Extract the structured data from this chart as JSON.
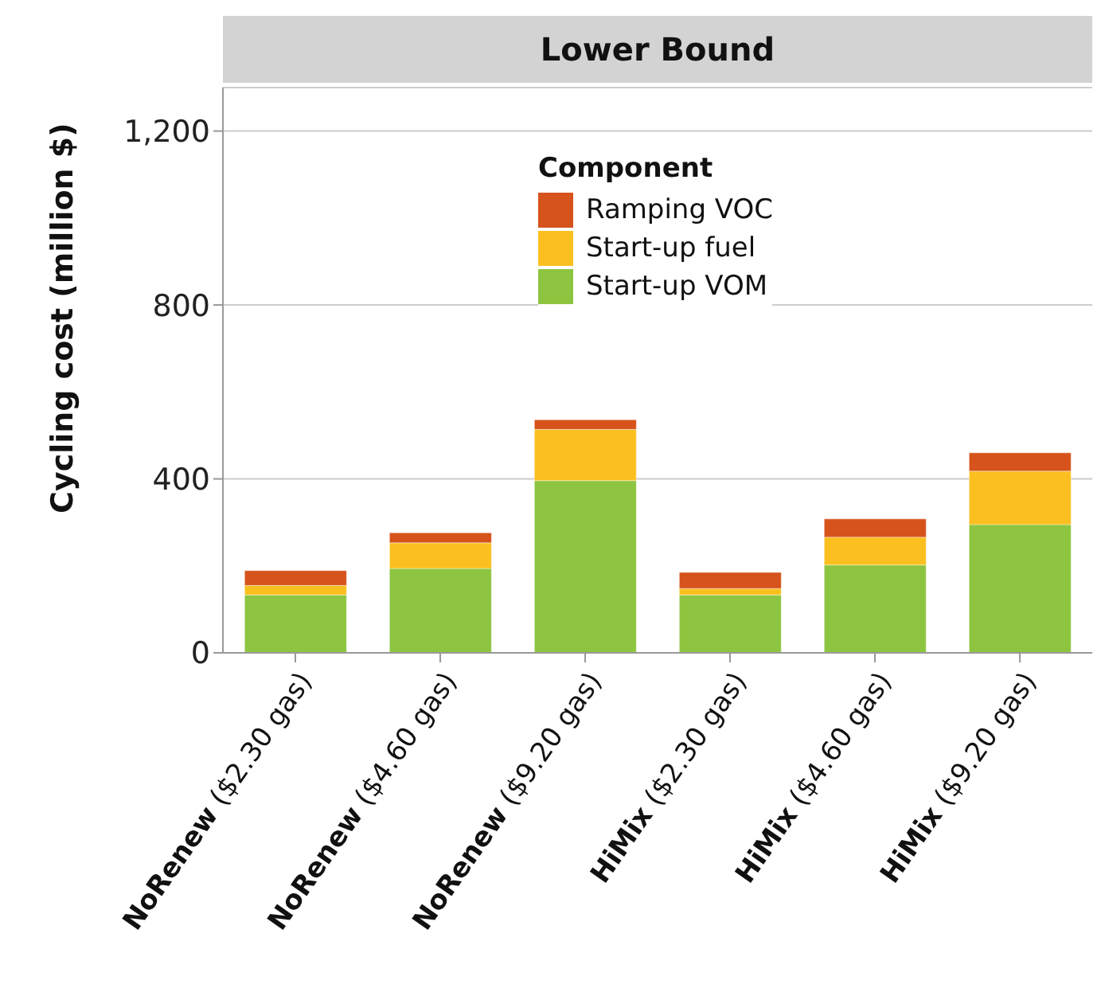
{
  "chart_data": {
    "type": "bar",
    "title": "Lower Bound",
    "ylabel": "Cycling cost (million $)",
    "legend_title": "Component",
    "categories": [
      "NoRenew ($2.30 gas)",
      "NoRenew ($4.60 gas)",
      "NoRenew ($9.20 gas)",
      "HiMix ($2.30 gas)",
      "HiMix ($4.60 gas)",
      "HiMix ($9.20 gas)"
    ],
    "series": [
      {
        "name": "Start-up VOM",
        "color": "#8dc540",
        "values": [
          133,
          194,
          396,
          133,
          202,
          295
        ]
      },
      {
        "name": "Start-up fuel",
        "color": "#fbc020",
        "values": [
          22,
          59,
          118,
          15,
          64,
          123
        ]
      },
      {
        "name": "Ramping VOC",
        "color": "#d6531c",
        "values": [
          34,
          23,
          22,
          37,
          42,
          42
        ]
      }
    ],
    "stacked": true,
    "ylim": [
      0,
      1300
    ],
    "yticks": [
      0,
      400,
      800,
      {
        "value": 1200,
        "label": "1,200"
      }
    ],
    "grid": "y",
    "legend": "top"
  }
}
